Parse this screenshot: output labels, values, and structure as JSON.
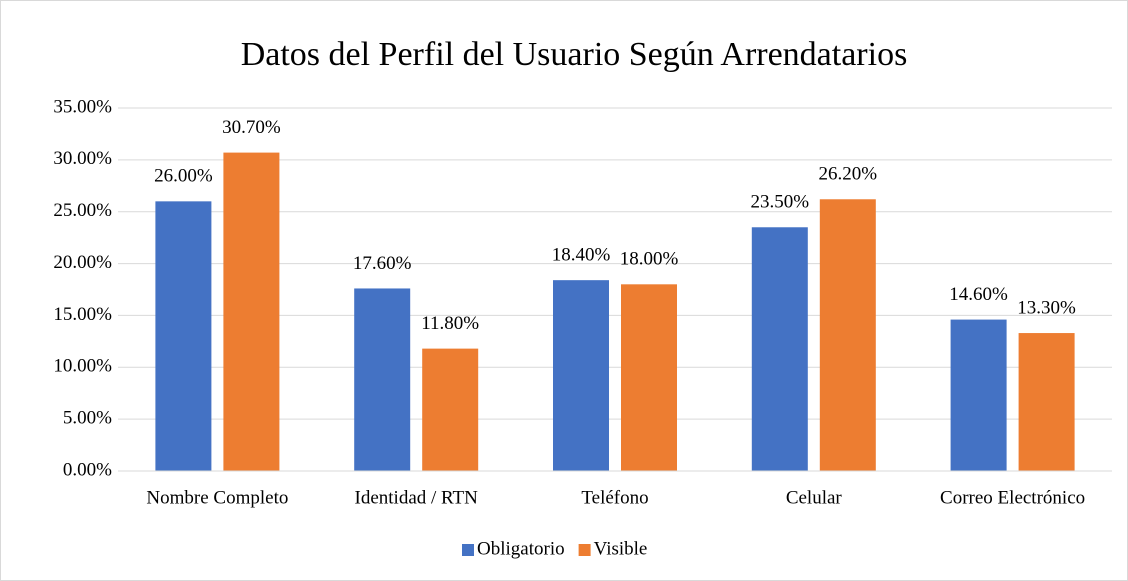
{
  "chart_data": {
    "type": "bar",
    "title": "Datos del Perfil del Usuario Según Arrendatarios",
    "categories": [
      "Nombre Completo",
      "Identidad / RTN",
      "Teléfono",
      "Celular",
      "Correo Electrónico"
    ],
    "series": [
      {
        "name": "Obligatorio",
        "color": "#4472c4",
        "values": [
          26.0,
          17.6,
          18.4,
          23.5,
          14.6
        ],
        "value_labels": [
          "26.00%",
          "17.60%",
          "18.40%",
          "23.50%",
          "14.60%"
        ]
      },
      {
        "name": "Visible",
        "color": "#ed7d31",
        "values": [
          30.7,
          11.8,
          18.0,
          26.2,
          13.3
        ],
        "value_labels": [
          "30.70%",
          "11.80%",
          "18.00%",
          "26.20%",
          "13.30%"
        ]
      }
    ],
    "ylim": [
      0,
      35
    ],
    "yticks": [
      {
        "value": 0,
        "label": "0.00%"
      },
      {
        "value": 5,
        "label": "5.00%"
      },
      {
        "value": 10,
        "label": "10.00%"
      },
      {
        "value": 15,
        "label": "15.00%"
      },
      {
        "value": 20,
        "label": "20.00%"
      },
      {
        "value": 25,
        "label": "25.00%"
      },
      {
        "value": 30,
        "label": "30.00%"
      },
      {
        "value": 35,
        "label": "35.00%"
      }
    ],
    "grid": true,
    "legend": "bottom"
  }
}
